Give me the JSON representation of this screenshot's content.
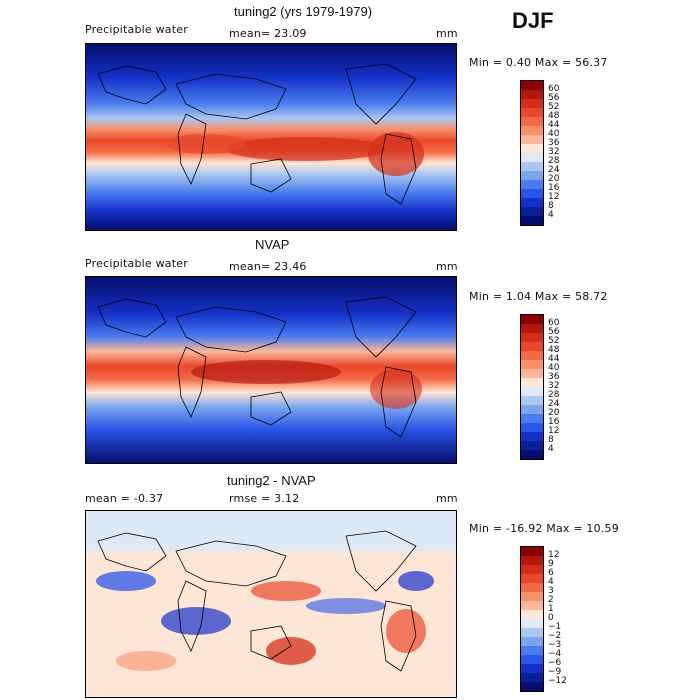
{
  "season": "DJF",
  "units": "mm",
  "panels": [
    {
      "title": "tuning2 (yrs 1979-1979)",
      "left_label": "Precipitable water",
      "mean_text": "mean=  23.09",
      "minmax_text": "Min =   0.40 Max =  56.37",
      "colorbar_labels": [
        "60",
        "56",
        "52",
        "48",
        "44",
        "40",
        "36",
        "32",
        "28",
        "24",
        "20",
        "16",
        "12",
        "8",
        "4"
      ],
      "colorbar_colors": [
        "#8b0000",
        "#b2170f",
        "#d42d1a",
        "#e8492b",
        "#f26b45",
        "#f8916b",
        "#fbb79a",
        "#fde6d6",
        "#dde9f7",
        "#a9c7f0",
        "#7aa5ee",
        "#4a7cef",
        "#2a55e6",
        "#1531c8",
        "#0a1e96",
        "#050e6e"
      ]
    },
    {
      "title": "NVAP",
      "left_label": "Precipitable water",
      "mean_text": "mean=  23.46",
      "minmax_text": "Min =   1.04 Max =  58.72",
      "colorbar_labels": [
        "60",
        "56",
        "52",
        "48",
        "44",
        "40",
        "36",
        "32",
        "28",
        "24",
        "20",
        "16",
        "12",
        "8",
        "4"
      ],
      "colorbar_colors": [
        "#8b0000",
        "#b2170f",
        "#d42d1a",
        "#e8492b",
        "#f26b45",
        "#f8916b",
        "#fbb79a",
        "#fde6d6",
        "#dde9f7",
        "#a9c7f0",
        "#7aa5ee",
        "#4a7cef",
        "#2a55e6",
        "#1531c8",
        "#0a1e96",
        "#050e6e"
      ]
    },
    {
      "title": "tuning2 - NVAP",
      "left_label": "mean =   -0.37",
      "mean_text": "rmse =    3.12",
      "minmax_text": "Min = -16.92 Max =  10.59",
      "colorbar_labels": [
        "12",
        "9",
        "6",
        "4",
        "3",
        "2",
        "1",
        "0",
        "−1",
        "−2",
        "−3",
        "−4",
        "−6",
        "−9",
        "−12"
      ],
      "colorbar_colors": [
        "#8b0000",
        "#b2170f",
        "#d42d1a",
        "#e8492b",
        "#f26b45",
        "#f8916b",
        "#fbb79a",
        "#fde6d6",
        "#dde9f7",
        "#a9c7f0",
        "#7aa5ee",
        "#4a7cef",
        "#2a55e6",
        "#1531c8",
        "#0a1e96",
        "#050e6e"
      ]
    }
  ]
}
